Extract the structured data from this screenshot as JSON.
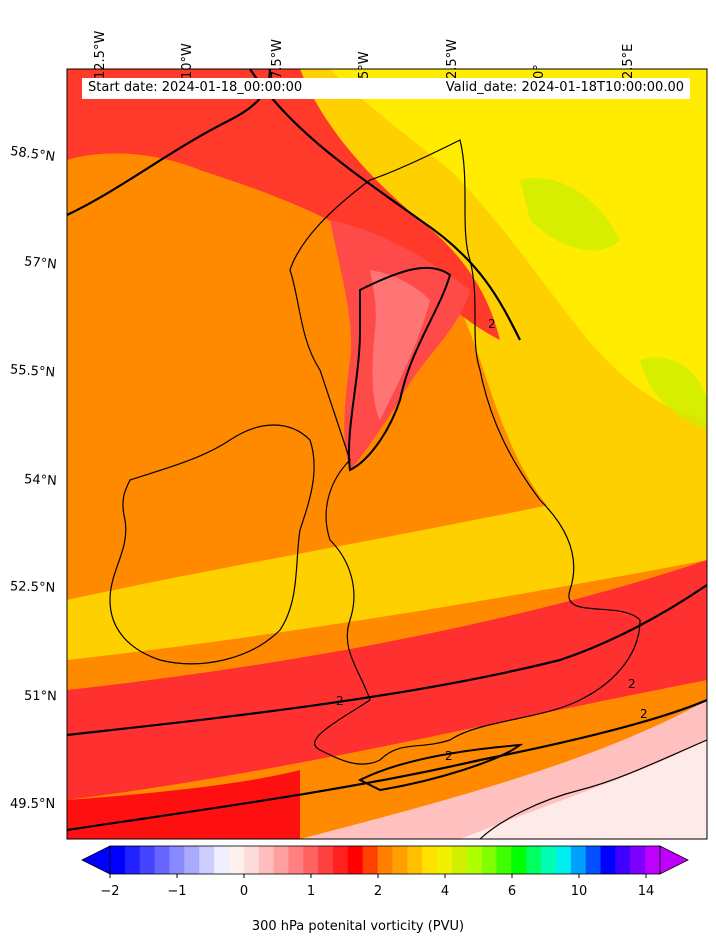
{
  "map": {
    "start_date": "Start date: 2024-01-18_00:00:00",
    "valid_date": "Valid_date: 2024-01-18T10:00:00.00",
    "longitude_labels": [
      "12.5°W",
      "10°W",
      "7.5°W",
      "5°W",
      "2.5°W",
      "0°",
      "2.5°E"
    ],
    "latitude_labels": [
      "58.5°N",
      "57°N",
      "55.5°N",
      "54°N",
      "52.5°N",
      "51°N",
      "49.5°N"
    ],
    "contour_label": "2",
    "colors": {
      "dominant_field": "#ff7f00",
      "high_pv_band": "#ff3030",
      "low_pv_area": "#ffe6e6",
      "coastline": "#000000",
      "contour": "#000000"
    }
  },
  "colorbar": {
    "label": "300 hPa potenital vorticity (PVU)",
    "ticks": [
      "−2",
      "−1",
      "0",
      "1",
      "2",
      "4",
      "6",
      "10",
      "14"
    ],
    "colors": [
      "#0000ff",
      "#2222ff",
      "#4444ff",
      "#6666ff",
      "#8888ff",
      "#aaaaff",
      "#ccccff",
      "#eeeeff",
      "#fff0f0",
      "#ffdcdc",
      "#ffbebe",
      "#ffa0a0",
      "#ff8080",
      "#ff6060",
      "#ff4040",
      "#ff2020",
      "#ff0000",
      "#ff4000",
      "#ff7f00",
      "#ffa000",
      "#ffc000",
      "#ffe000",
      "#f0f000",
      "#d0f000",
      "#b0ff00",
      "#80ff00",
      "#40ff00",
      "#00ff00",
      "#00ff60",
      "#00ffb0",
      "#00f0f0",
      "#00a0ff",
      "#0050ff",
      "#0000ff",
      "#4000ff",
      "#8000ff",
      "#c000ff"
    ],
    "under_color": "#0000ff",
    "over_color": "#c000ff"
  }
}
